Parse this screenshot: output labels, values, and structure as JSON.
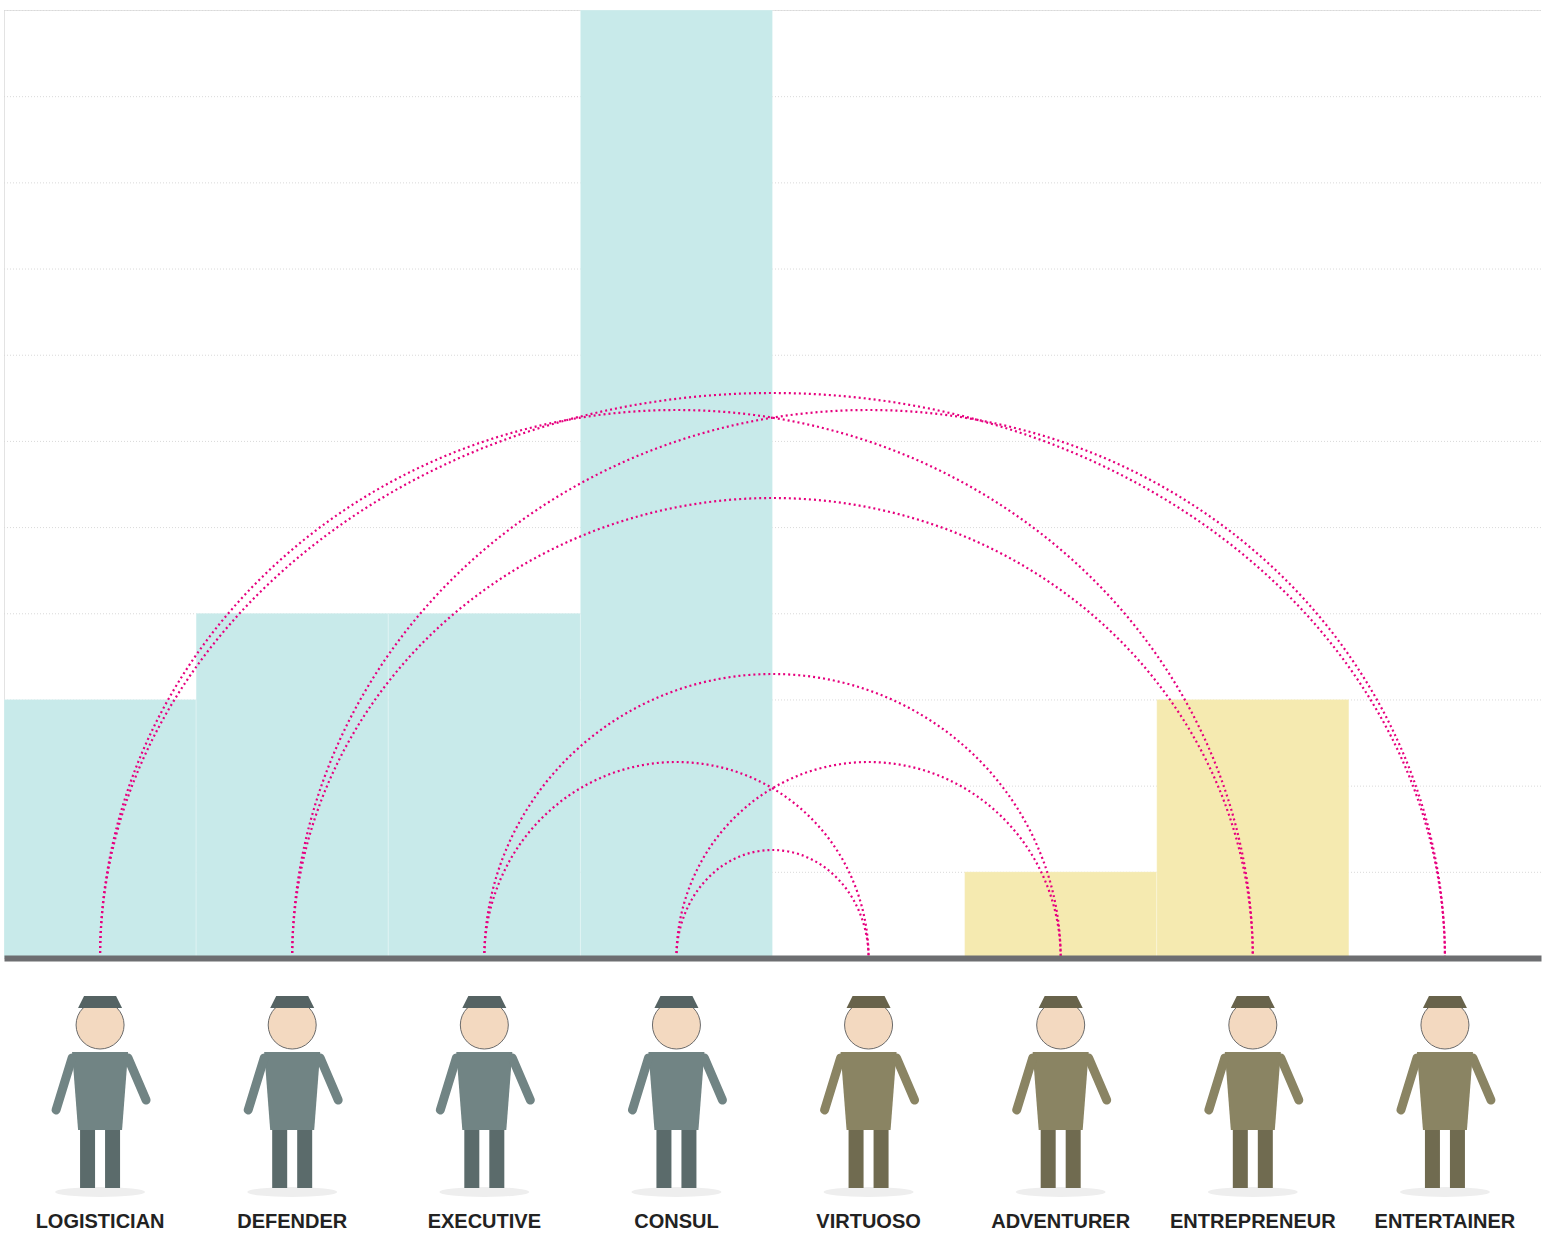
{
  "chart_data": {
    "type": "bar",
    "categories": [
      "LOGISTICIAN",
      "DEFENDER",
      "EXECUTIVE",
      "CONSUL",
      "VIRTUOSO",
      "ADVENTURER",
      "ENTREPRENEUR",
      "ENTERTAINER"
    ],
    "values": [
      3,
      4,
      4,
      11,
      0,
      1,
      3,
      0
    ],
    "colors": [
      "#c8eaea",
      "#c8eaea",
      "#c8eaea",
      "#c8eaea",
      "#f5eab0",
      "#f5eab0",
      "#f5eab0",
      "#f5eab0"
    ],
    "ylim": [
      0,
      11
    ],
    "yticks": [
      0,
      1,
      2,
      3,
      4,
      5,
      6,
      7,
      8,
      9,
      10,
      11
    ],
    "grid": true,
    "tick_labels": "x",
    "links": [
      [
        0,
        6
      ],
      [
        1,
        7
      ],
      [
        0,
        7
      ],
      [
        1,
        6
      ],
      [
        2,
        5
      ],
      [
        2,
        4
      ],
      [
        3,
        5
      ],
      [
        3,
        4
      ]
    ],
    "line_style": "dotted"
  }
}
